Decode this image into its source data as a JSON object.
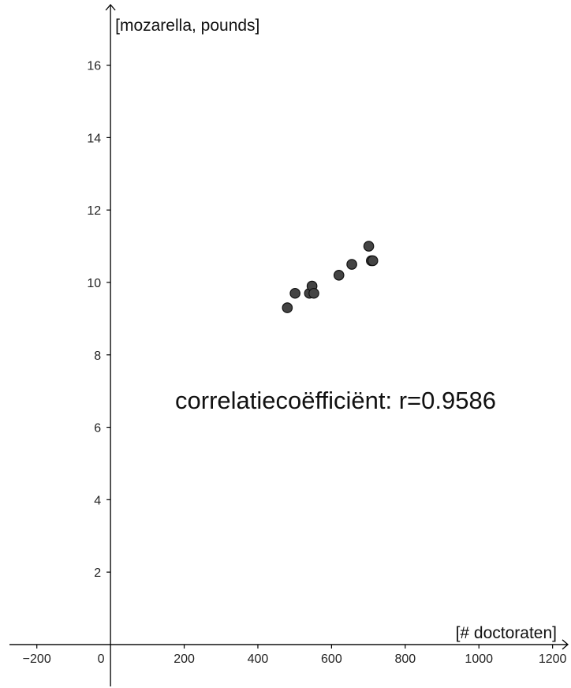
{
  "chart_data": {
    "type": "scatter",
    "xlabel": "[# doctoraten]",
    "ylabel": "[mozarella, pounds]",
    "xlim": [
      -300,
      1250
    ],
    "ylim": [
      -1.2,
      17.8
    ],
    "x_ticks": [
      -200,
      0,
      200,
      400,
      600,
      800,
      1000,
      1200
    ],
    "x_tick_labels": [
      "−200",
      "0",
      "200",
      "400",
      "600",
      "800",
      "1000",
      "1200"
    ],
    "y_ticks": [
      2,
      4,
      6,
      8,
      10,
      12,
      14,
      16
    ],
    "y_tick_labels": [
      "2",
      "4",
      "6",
      "8",
      "10",
      "12",
      "14",
      "16"
    ],
    "grid": false,
    "annotation": "correlatiecoëfficiënt: r=0.9586",
    "point_color": "#444444",
    "point_stroke": "#111111",
    "points": [
      {
        "x": 480,
        "y": 9.3
      },
      {
        "x": 501,
        "y": 9.7
      },
      {
        "x": 540,
        "y": 9.7
      },
      {
        "x": 547,
        "y": 9.9
      },
      {
        "x": 552,
        "y": 9.7
      },
      {
        "x": 620,
        "y": 10.2
      },
      {
        "x": 655,
        "y": 10.5
      },
      {
        "x": 701,
        "y": 11.0
      },
      {
        "x": 708,
        "y": 10.6
      },
      {
        "x": 712,
        "y": 10.6
      }
    ]
  }
}
